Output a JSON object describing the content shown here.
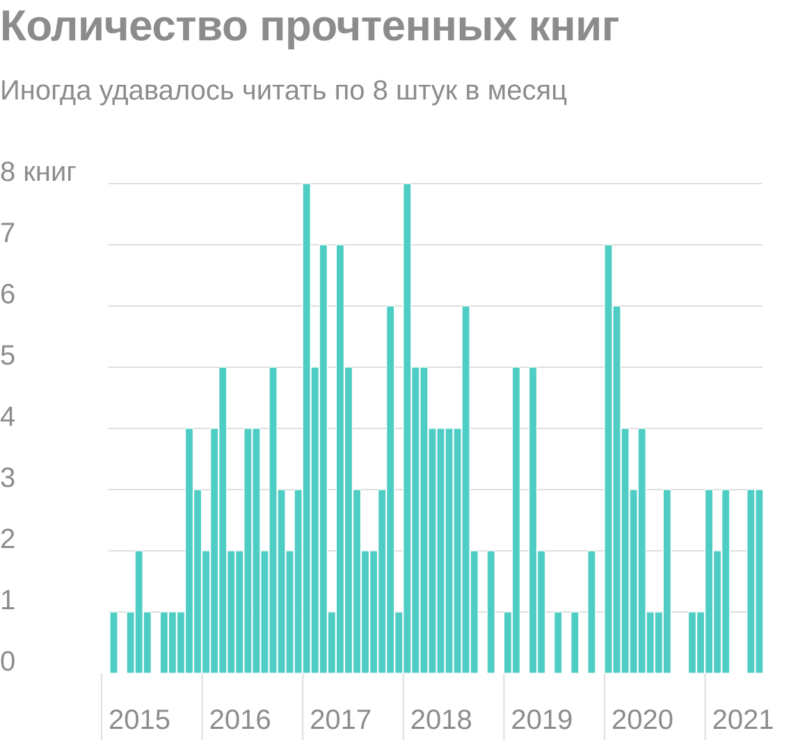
{
  "title": "Количество прочтенных книг",
  "subtitle": "Иногда удавалось читать по 8 штук в месяц",
  "colors": {
    "bar": "#4ecdc4",
    "grid": "#dedede",
    "text": "#8c8c8c"
  },
  "chart_data": {
    "type": "bar",
    "title": "Количество прочтенных книг",
    "subtitle": "Иногда удавалось читать по 8 штук в месяц",
    "ylim": [
      0,
      8
    ],
    "y_ticks": [
      "0",
      "1",
      "2",
      "3",
      "4",
      "5",
      "6",
      "7",
      "8 книг"
    ],
    "x_ticks": [
      "2015",
      "2016",
      "2017",
      "2018",
      "2019",
      "2020",
      "2021"
    ],
    "grid": true,
    "values": [
      0,
      1,
      0,
      1,
      2,
      1,
      0,
      1,
      1,
      1,
      4,
      3,
      2,
      4,
      5,
      2,
      2,
      4,
      4,
      2,
      5,
      3,
      2,
      3,
      8,
      5,
      7,
      1,
      7,
      5,
      3,
      2,
      2,
      3,
      6,
      1,
      8,
      5,
      5,
      4,
      4,
      4,
      4,
      6,
      2,
      0,
      2,
      0,
      1,
      5,
      0,
      5,
      2,
      0,
      1,
      0,
      1,
      0,
      2,
      0,
      7,
      6,
      4,
      3,
      4,
      1,
      1,
      3,
      0,
      0,
      1,
      1,
      3,
      2,
      3,
      0,
      0,
      3,
      3
    ]
  }
}
